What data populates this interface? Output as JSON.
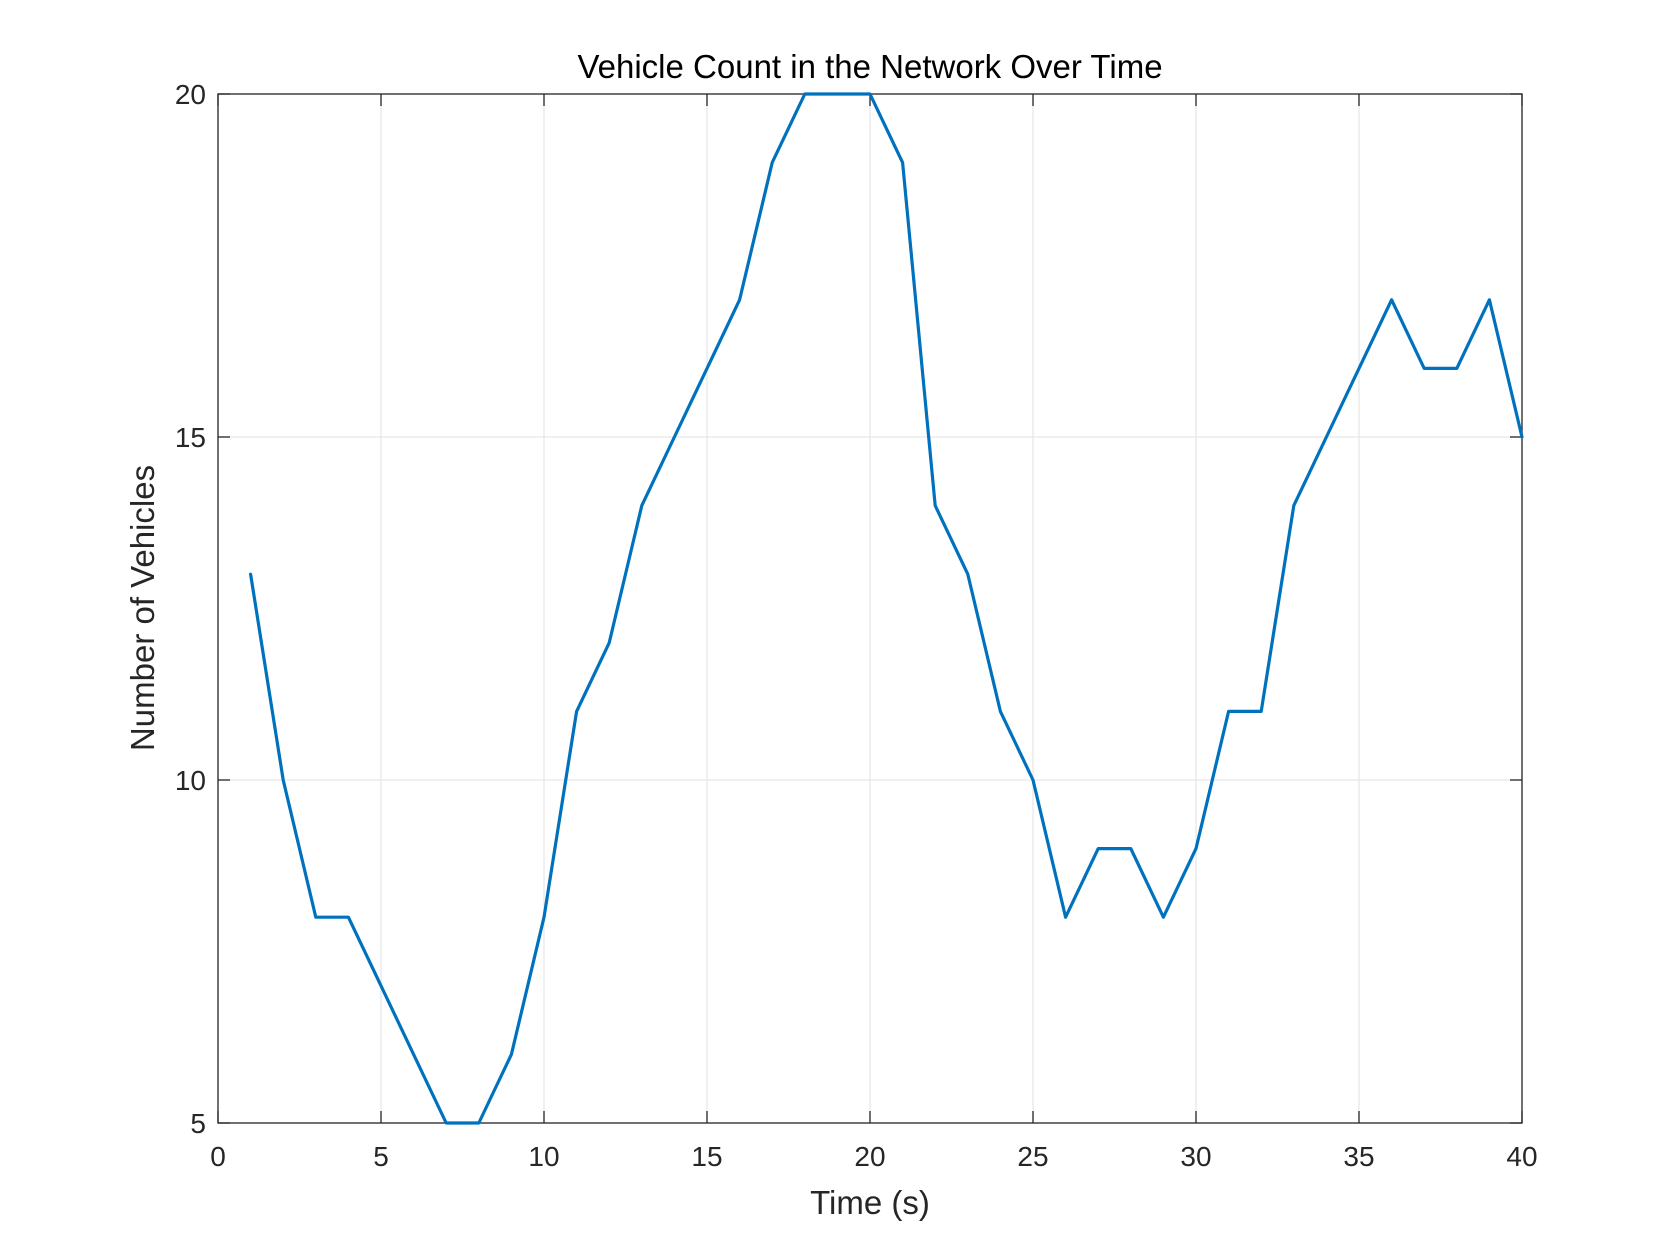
{
  "chart_data": {
    "type": "line",
    "title": "Vehicle Count in the Network Over Time",
    "xlabel": "Time (s)",
    "ylabel": "Number of Vehicles",
    "xlim": [
      0,
      40
    ],
    "ylim": [
      5,
      20
    ],
    "xticks": [
      0,
      5,
      10,
      15,
      20,
      25,
      30,
      35,
      40
    ],
    "yticks": [
      5,
      10,
      15,
      20
    ],
    "grid": true,
    "series": [
      {
        "color": "#0072bd",
        "x": [
          1,
          2,
          3,
          4,
          5,
          6,
          7,
          8,
          9,
          10,
          11,
          12,
          13,
          14,
          15,
          16,
          17,
          18,
          19,
          20,
          21,
          22,
          23,
          24,
          25,
          26,
          27,
          28,
          29,
          30,
          31,
          32,
          33,
          34,
          35,
          36,
          37,
          38,
          39,
          40
        ],
        "y": [
          13,
          10,
          8,
          8,
          7,
          6,
          5,
          5,
          6,
          8,
          11,
          12,
          14,
          15,
          16,
          17,
          19,
          20,
          20,
          20,
          19,
          14,
          13,
          11,
          10,
          8,
          9,
          9,
          8,
          9,
          11,
          11,
          14,
          15,
          16,
          17,
          16,
          16,
          17,
          15
        ]
      }
    ]
  }
}
